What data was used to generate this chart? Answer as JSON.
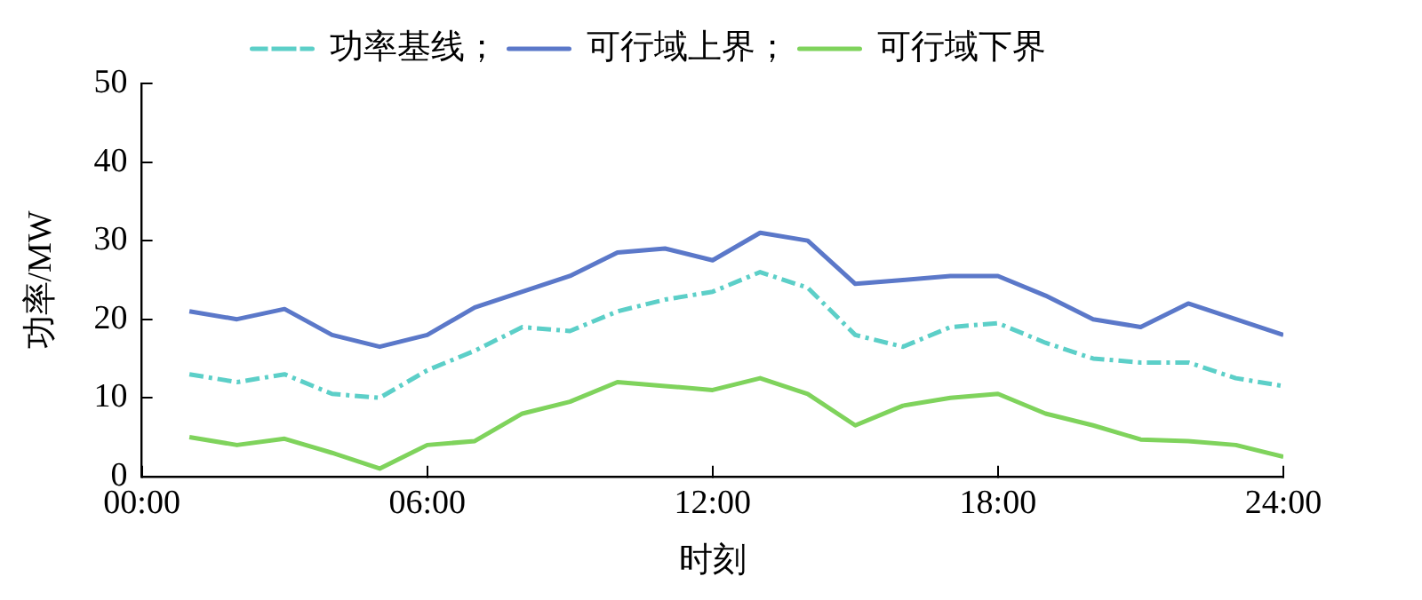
{
  "chart_data": {
    "type": "line",
    "xlabel": "时刻",
    "ylabel": "功率/MW",
    "x": [
      1,
      2,
      3,
      4,
      5,
      6,
      7,
      8,
      9,
      10,
      11,
      12,
      13,
      14,
      15,
      16,
      17,
      18,
      19,
      20,
      21,
      22,
      23,
      24
    ],
    "series": [
      {
        "name": "功率基线；",
        "color": "#5ccfc8",
        "line_style": "dashed",
        "values": [
          13,
          12,
          13,
          10.5,
          10,
          13.5,
          16,
          19,
          18.5,
          21,
          22.5,
          23.5,
          26,
          24,
          18,
          16.5,
          19,
          19.5,
          17,
          15,
          14.5,
          14.5,
          12.5,
          11.5
        ]
      },
      {
        "name": "可行域上界；",
        "color": "#5b78c9",
        "line_style": "solid",
        "values": [
          21,
          20,
          21.3,
          18,
          16.5,
          18,
          21.5,
          23.5,
          25.5,
          28.5,
          29,
          27.5,
          31,
          30,
          24.5,
          25,
          25.5,
          25.5,
          23,
          20,
          19,
          22,
          20,
          18
        ]
      },
      {
        "name": "可行域下界",
        "color": "#7fd35c",
        "line_style": "solid",
        "values": [
          5,
          4,
          4.8,
          3,
          1,
          4,
          4.5,
          8,
          9.5,
          12,
          11.5,
          11,
          12.5,
          10.5,
          6.5,
          9,
          10,
          10.5,
          8,
          6.5,
          4.7,
          4.5,
          4,
          2.5
        ]
      }
    ],
    "xlim": [
      0,
      24
    ],
    "xticks": [
      {
        "value": 0,
        "label": "00:00"
      },
      {
        "value": 6,
        "label": "06:00"
      },
      {
        "value": 12,
        "label": "12:00"
      },
      {
        "value": 18,
        "label": "18:00"
      },
      {
        "value": 24,
        "label": "24:00"
      }
    ],
    "ylim": [
      0,
      50
    ],
    "yticks": [
      0,
      10,
      20,
      30,
      40,
      50
    ],
    "grid": false,
    "legend": "top",
    "marker": "none"
  }
}
